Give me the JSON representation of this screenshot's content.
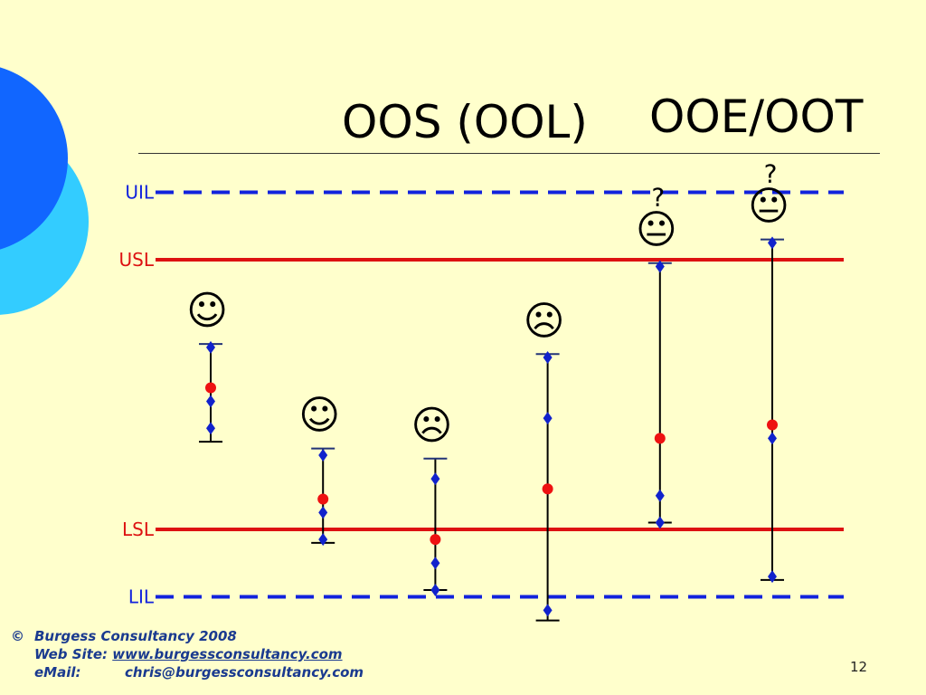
{
  "slide": {
    "title_left": "OOS (OOL)",
    "title_right": "OOE/OOT",
    "page_number": "12"
  },
  "footer": {
    "copyright_symbol": "©",
    "company": "Burgess Consultancy 2008",
    "website_label": "Web Site:",
    "website": "www.burgessconsultancy.com",
    "email_label": "eMail:",
    "email": "chris@burgessconsultancy.com"
  },
  "colors": {
    "background": "#ffffcc",
    "limit_red": "#dd1111",
    "limit_blue": "#1122dd",
    "point_blue": "#1122cc",
    "mean_red": "#ee1111",
    "footer_text": "#1a3a8f",
    "circle_dark": "#1166ff",
    "circle_light": "#33ccff"
  },
  "chart_data": {
    "type": "scatter",
    "title": "",
    "xlabel": "",
    "ylabel": "",
    "ylim": [
      -0.5,
      5.5
    ],
    "limits": [
      {
        "label": "UIL",
        "value": 5,
        "style": "dashed",
        "color": "#1122dd"
      },
      {
        "label": "USL",
        "value": 4,
        "style": "solid",
        "color": "#dd1111"
      },
      {
        "label": "LSL",
        "value": 0,
        "style": "solid",
        "color": "#dd1111"
      },
      {
        "label": "LIL",
        "value": -1,
        "style": "dashed",
        "color": "#1122dd"
      }
    ],
    "series": [
      {
        "x": 1,
        "mean": 2.1,
        "range": [
          1.3,
          2.75
        ],
        "points": [
          2.7,
          1.9,
          1.5
        ],
        "face": "☺",
        "question": ""
      },
      {
        "x": 2,
        "mean": 0.45,
        "range": [
          -0.2,
          1.2
        ],
        "points": [
          1.1,
          0.25,
          -0.15
        ],
        "face": "☺",
        "question": ""
      },
      {
        "x": 3,
        "mean": -0.15,
        "range": [
          -0.9,
          1.05
        ],
        "points": [
          0.75,
          -0.5,
          -0.9
        ],
        "face": "☹",
        "question": ""
      },
      {
        "x": 4,
        "mean": 0.6,
        "range": [
          -1.35,
          2.6
        ],
        "points": [
          2.55,
          1.65,
          -1.2
        ],
        "face": "☹",
        "question": ""
      },
      {
        "x": 5,
        "mean": 1.35,
        "range": [
          0.1,
          3.95
        ],
        "points": [
          3.9,
          0.5,
          0.1
        ],
        "face": "😐",
        "question": "?"
      },
      {
        "x": 6,
        "mean": 1.55,
        "range": [
          -0.75,
          4.3
        ],
        "points": [
          4.25,
          1.35,
          -0.7
        ],
        "face": "😐",
        "question": "?"
      }
    ]
  }
}
